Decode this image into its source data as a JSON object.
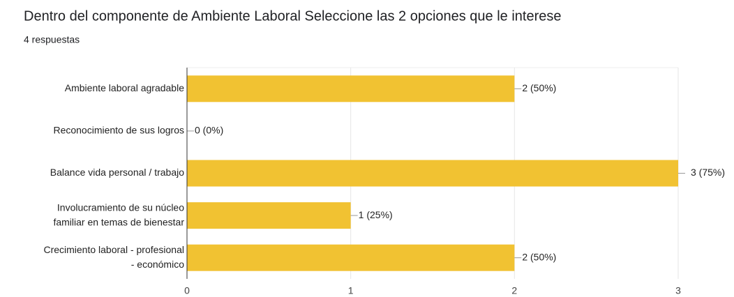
{
  "chart_data": {
    "type": "bar",
    "orientation": "horizontal",
    "title": "Dentro del componente de Ambiente Laboral  Seleccione las 2  opciones que le interese",
    "subtitle": "4 respuestas",
    "categories": [
      "Ambiente laboral agradable",
      "Reconocimiento de sus logros",
      "Balance vida personal / trabajo",
      "Involucramiento de su núcleo\nfamiliar en temas de bienestar",
      "Crecimiento laboral - profesional\n- económico"
    ],
    "values": [
      2,
      0,
      3,
      1,
      2
    ],
    "value_labels": [
      "2 (50%)",
      "0 (0%)",
      "3 (75%)",
      "1 (25%)",
      "2 (50%)"
    ],
    "color": "#f1c232",
    "xlim": [
      0,
      3
    ],
    "xticks": [
      0,
      1,
      2,
      3
    ],
    "grid": true
  }
}
